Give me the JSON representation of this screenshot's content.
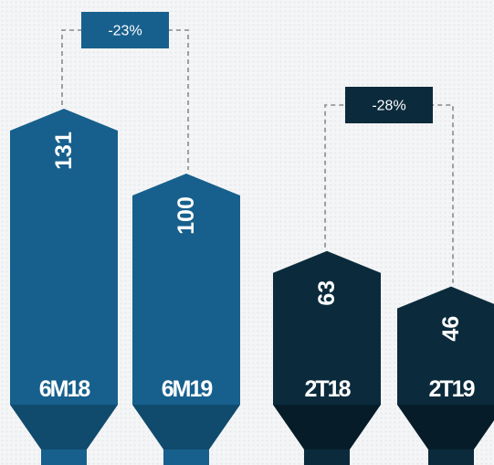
{
  "colors": {
    "group_1": "#17608d",
    "group_1_dark": "#104a6d",
    "group_2": "#0b2b3c",
    "group_2_dark": "#061d29",
    "connector": "#8a8a8a"
  },
  "chart_data": {
    "type": "bar",
    "categories": [
      "6M18",
      "6M19",
      "2T18",
      "2T19"
    ],
    "values": [
      131,
      100,
      63,
      46
    ],
    "value_labels": [
      "131",
      "100",
      "63",
      "46"
    ],
    "groups": [
      {
        "categories": [
          "6M18",
          "6M19"
        ],
        "change_label": "-23%",
        "color": "#17608d"
      },
      {
        "categories": [
          "2T18",
          "2T19"
        ],
        "change_label": "-28%",
        "color": "#0b2b3c"
      }
    ],
    "title": "",
    "xlabel": "",
    "ylabel": "",
    "legend": "none",
    "grid": false
  }
}
